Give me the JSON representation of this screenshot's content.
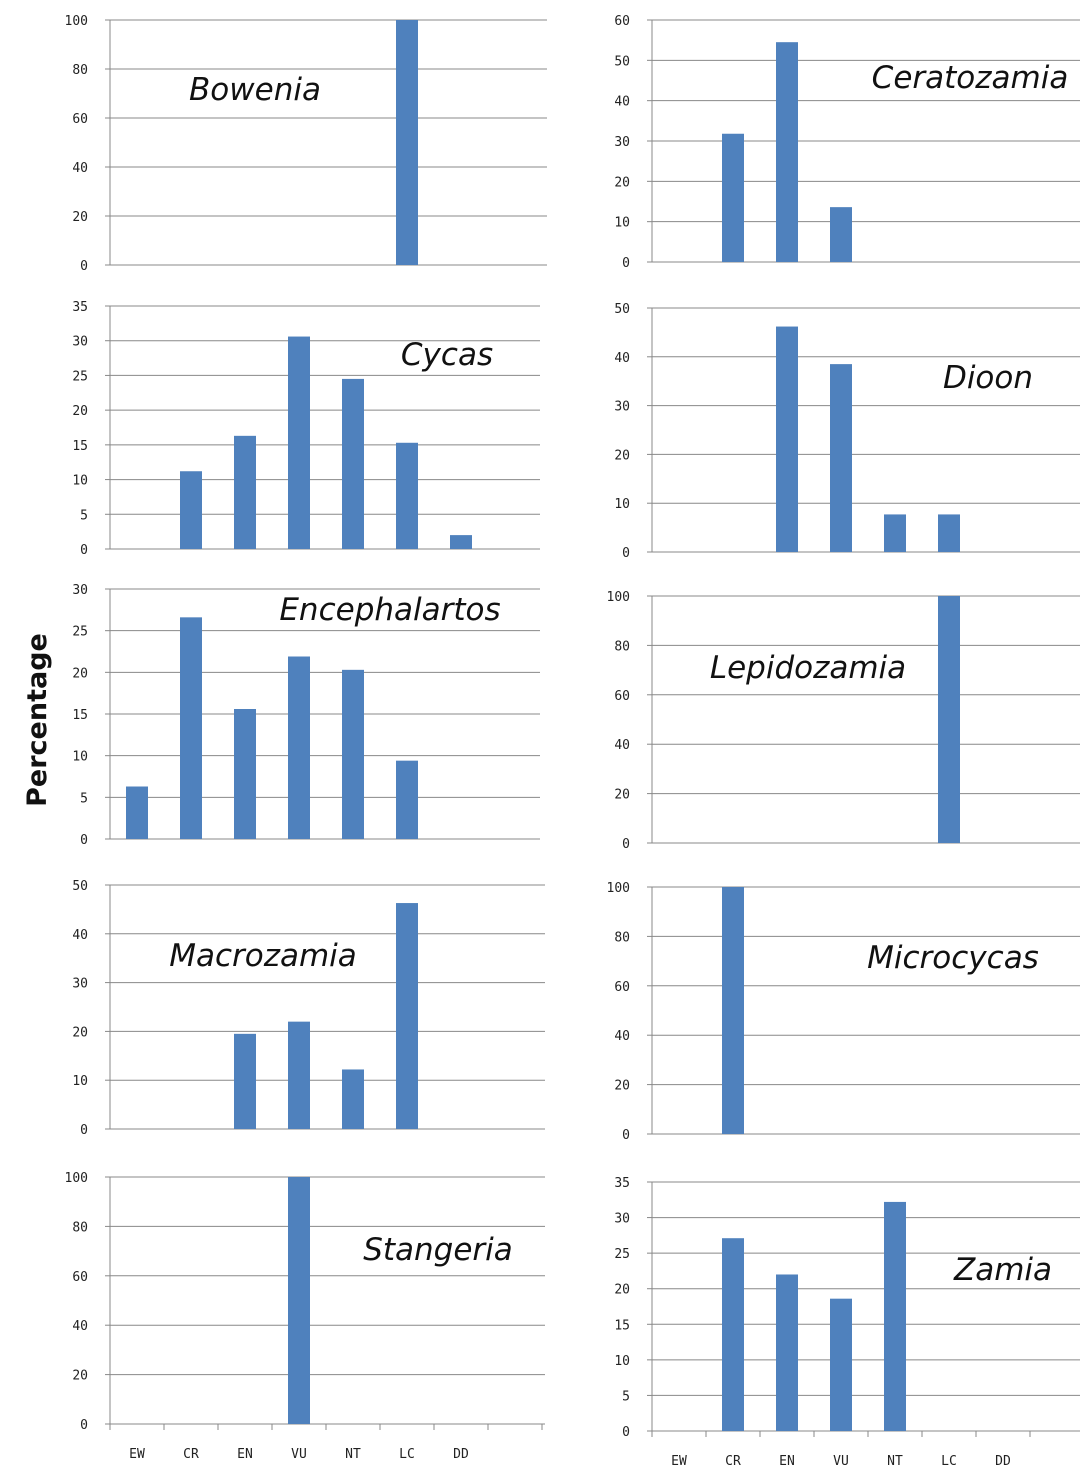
{
  "ylabel": "Percentage",
  "categories": [
    "EW",
    "CR",
    "EN",
    "VU",
    "NT",
    "LC",
    "DD"
  ],
  "bar_color": "#4F81BD",
  "grid_color": "#888888",
  "chart_data": [
    {
      "type": "bar",
      "title": "Bowenia",
      "ylim": [
        0,
        100
      ],
      "yticks": [
        0,
        20,
        40,
        60,
        80,
        100
      ],
      "values": [
        0,
        0,
        0,
        0,
        0,
        100,
        0
      ],
      "grid": true
    },
    {
      "type": "bar",
      "title": "Ceratozamia",
      "ylim": [
        0,
        60
      ],
      "yticks": [
        0,
        10,
        20,
        30,
        40,
        50,
        60
      ],
      "values": [
        0,
        31.8,
        54.5,
        13.6,
        0,
        0,
        0
      ],
      "grid": true
    },
    {
      "type": "bar",
      "title": "Cycas",
      "ylim": [
        0,
        35
      ],
      "yticks": [
        0,
        5,
        10,
        15,
        20,
        25,
        30,
        35
      ],
      "values": [
        0,
        11.2,
        16.3,
        30.6,
        24.5,
        15.3,
        2.0
      ],
      "grid": true
    },
    {
      "type": "bar",
      "title": "Dioon",
      "ylim": [
        0,
        50
      ],
      "yticks": [
        0,
        10,
        20,
        30,
        40,
        50
      ],
      "values": [
        0,
        0,
        46.2,
        38.5,
        7.7,
        7.7,
        0
      ],
      "grid": true
    },
    {
      "type": "bar",
      "title": "Encephalartos",
      "ylim": [
        0,
        30
      ],
      "yticks": [
        0,
        5,
        10,
        15,
        20,
        25,
        30
      ],
      "values": [
        6.3,
        26.6,
        15.6,
        21.9,
        20.3,
        9.4,
        0
      ],
      "grid": true
    },
    {
      "type": "bar",
      "title": "Lepidozamia",
      "ylim": [
        0,
        100
      ],
      "yticks": [
        0,
        20,
        40,
        60,
        80,
        100
      ],
      "values": [
        0,
        0,
        0,
        0,
        0,
        100,
        0
      ],
      "grid": true
    },
    {
      "type": "bar",
      "title": "Macrozamia",
      "ylim": [
        0,
        50
      ],
      "yticks": [
        0,
        10,
        20,
        30,
        40,
        50
      ],
      "values": [
        0,
        0,
        19.5,
        22.0,
        12.2,
        46.3,
        0
      ],
      "grid": true
    },
    {
      "type": "bar",
      "title": "Microcycas",
      "ylim": [
        0,
        100
      ],
      "yticks": [
        0,
        20,
        40,
        60,
        80,
        100
      ],
      "values": [
        0,
        100,
        0,
        0,
        0,
        0,
        0
      ],
      "grid": true
    },
    {
      "type": "bar",
      "title": "Stangeria",
      "ylim": [
        0,
        100
      ],
      "yticks": [
        0,
        20,
        40,
        60,
        80,
        100
      ],
      "values": [
        0,
        0,
        0,
        100,
        0,
        0,
        0
      ],
      "grid": true
    },
    {
      "type": "bar",
      "title": "Zamia",
      "ylim": [
        0,
        35
      ],
      "yticks": [
        0,
        5,
        10,
        15,
        20,
        25,
        30,
        35
      ],
      "values": [
        0,
        27.1,
        22.0,
        18.6,
        32.2,
        0,
        0
      ],
      "grid": true
    }
  ]
}
